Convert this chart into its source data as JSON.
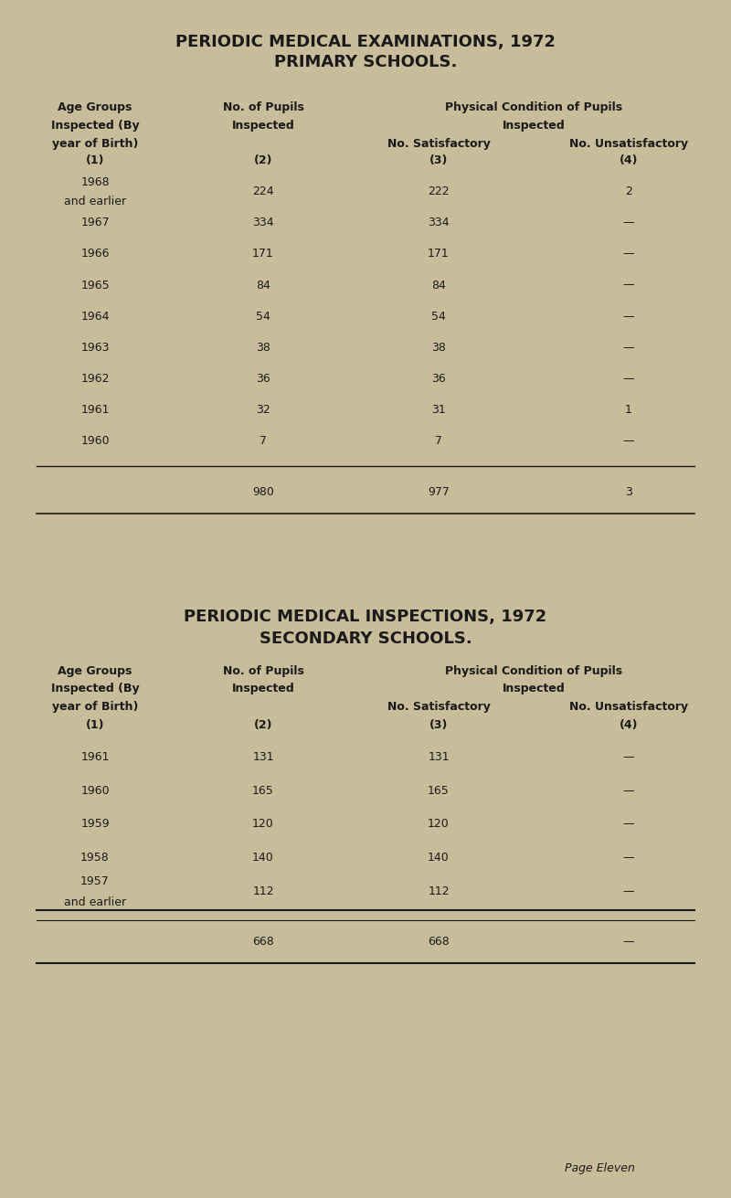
{
  "bg_color": "#c8bc9a",
  "text_color": "#1a1a1a",
  "title1_line1": "PERIODIC MEDICAL EXAMINATIONS, 1972",
  "title1_line2": "PRIMARY SCHOOLS.",
  "title2_line1": "PERIODIC MEDICAL INSPECTIONS, 1972",
  "title2_line2": "SECONDARY SCHOOLS.",
  "col_header_line1": "Age Groups",
  "col_header_line2": "Inspected (By",
  "col_header_line3": "year of Birth)",
  "col2_header_line1": "No. of Pupils",
  "col2_header_line2": "Inspected",
  "col34_header_line1": "Physical Condition of Pupils",
  "col34_header_line2": "Inspected",
  "col3_header": "No. Satisfactory",
  "col4_header": "No. Unsatisfactory",
  "col_nums": "(1)",
  "col2_nums": "(2)",
  "col3_nums": "(3)",
  "col4_nums": "(4)",
  "primary_rows": [
    {
      "year": "1968",
      "year2": "and earlier",
      "inspected": "224",
      "satisfactory": "222",
      "unsatisfactory": "2"
    },
    {
      "year": "1967",
      "year2": "",
      "inspected": "334",
      "satisfactory": "334",
      "unsatisfactory": "—"
    },
    {
      "year": "1966",
      "year2": "",
      "inspected": "171",
      "satisfactory": "171",
      "unsatisfactory": "—"
    },
    {
      "year": "1965",
      "year2": "",
      "inspected": "84",
      "satisfactory": "84",
      "unsatisfactory": "—"
    },
    {
      "year": "1964",
      "year2": "",
      "inspected": "54",
      "satisfactory": "54",
      "unsatisfactory": "—"
    },
    {
      "year": "1963",
      "year2": "",
      "inspected": "38",
      "satisfactory": "38",
      "unsatisfactory": "—"
    },
    {
      "year": "1962",
      "year2": "",
      "inspected": "36",
      "satisfactory": "36",
      "unsatisfactory": "—"
    },
    {
      "year": "1961",
      "year2": "",
      "inspected": "32",
      "satisfactory": "31",
      "unsatisfactory": "1"
    },
    {
      "year": "1960",
      "year2": "",
      "inspected": "7",
      "satisfactory": "7",
      "unsatisfactory": "—"
    }
  ],
  "primary_total": {
    "inspected": "980",
    "satisfactory": "977",
    "unsatisfactory": "3"
  },
  "secondary_rows": [
    {
      "year": "1961",
      "year2": "",
      "inspected": "131",
      "satisfactory": "131",
      "unsatisfactory": "—"
    },
    {
      "year": "1960",
      "year2": "",
      "inspected": "165",
      "satisfactory": "165",
      "unsatisfactory": "—"
    },
    {
      "year": "1959",
      "year2": "",
      "inspected": "120",
      "satisfactory": "120",
      "unsatisfactory": "—"
    },
    {
      "year": "1958",
      "year2": "",
      "inspected": "140",
      "satisfactory": "140",
      "unsatisfactory": "—"
    },
    {
      "year": "1957",
      "year2": "and earlier",
      "inspected": "112",
      "satisfactory": "112",
      "unsatisfactory": "—"
    }
  ],
  "secondary_total": {
    "inspected": "668",
    "satisfactory": "668",
    "unsatisfactory": "—"
  },
  "page_text": "Page Eleven"
}
